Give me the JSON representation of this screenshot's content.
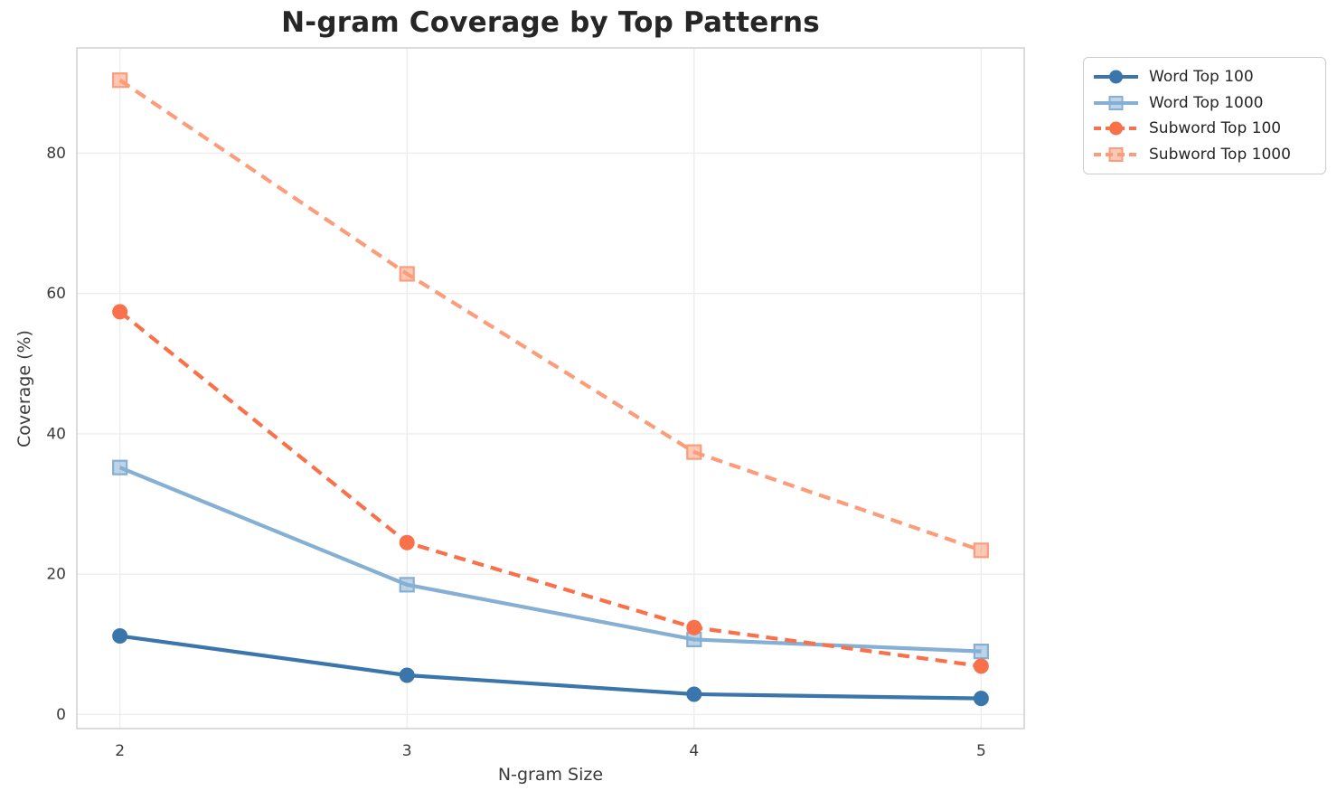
{
  "chart_data": {
    "type": "line",
    "title": "N-gram Coverage by Top Patterns",
    "xlabel": "N-gram Size",
    "ylabel": "Coverage (%)",
    "x": [
      2,
      3,
      4,
      5
    ],
    "x_tick_labels": [
      "2",
      "3",
      "4",
      "5"
    ],
    "y_ticks": [
      0,
      20,
      40,
      60,
      80
    ],
    "xlim": [
      1.85,
      5.15
    ],
    "ylim": [
      -2,
      95
    ],
    "grid": true,
    "legend_position": "outside-upper-right",
    "series": [
      {
        "name": "Word Top 100",
        "values": [
          11.2,
          5.6,
          2.9,
          2.3
        ],
        "color": "#3a76ab",
        "line_style": "solid",
        "marker": "circle"
      },
      {
        "name": "Word Top 1000",
        "values": [
          35.2,
          18.5,
          10.7,
          9.0
        ],
        "color": "#86afd4",
        "line_style": "solid",
        "marker": "square"
      },
      {
        "name": "Subword Top 100",
        "values": [
          57.4,
          24.5,
          12.4,
          6.9
        ],
        "color": "#f9714b",
        "line_style": "dashed",
        "marker": "circle"
      },
      {
        "name": "Subword Top 1000",
        "values": [
          90.4,
          62.8,
          37.4,
          23.4
        ],
        "color": "#fb9c7b",
        "line_style": "dashed",
        "marker": "square"
      }
    ],
    "colors": {
      "grid": "#ededed",
      "spine": "#cdcdcd",
      "tick_text": "#3a3a3a",
      "title_text": "#262626"
    }
  }
}
